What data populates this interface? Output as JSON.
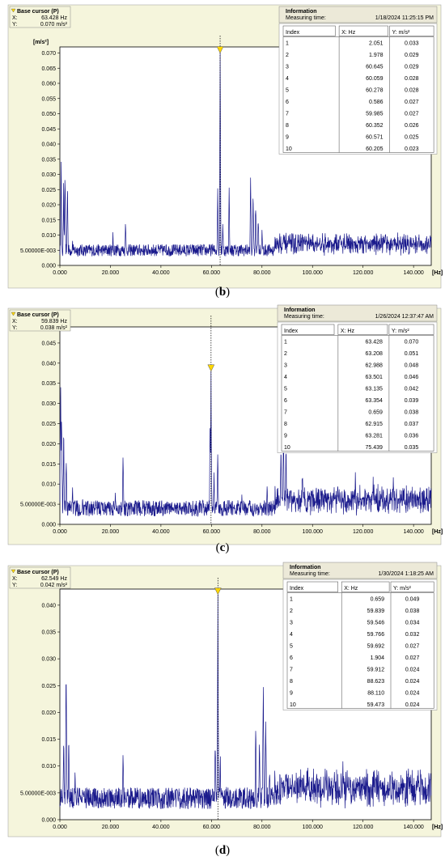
{
  "colors": {
    "frame_bg": "#f5f5dc",
    "plot_bg": "#ffffff",
    "trace": "#1a1a8c",
    "marker": "#ffd700",
    "info_header": "#ece9d8"
  },
  "chart_data": [
    {
      "type": "line",
      "caption": "b",
      "cursor": {
        "title": "Base cursor (P)",
        "x_label": "X:",
        "x_value": "63.428 Hz",
        "y_label": "Y:",
        "y_value": "0.070 m/s²"
      },
      "info": {
        "title": "Information",
        "measuring_label": "Measuring time:",
        "measuring_time": "1/18/2024 11:25:15 PM",
        "columns": [
          "Index",
          "X: Hz",
          "Y: m/s²"
        ],
        "rows": [
          [
            "1",
            "2.051",
            "0.033"
          ],
          [
            "2",
            "1.978",
            "0.029"
          ],
          [
            "3",
            "60.645",
            "0.029"
          ],
          [
            "4",
            "60.059",
            "0.028"
          ],
          [
            "5",
            "60.278",
            "0.028"
          ],
          [
            "6",
            "0.586",
            "0.027"
          ],
          [
            "7",
            "59.985",
            "0.027"
          ],
          [
            "8",
            "60.352",
            "0.026"
          ],
          [
            "9",
            "60.571",
            "0.025"
          ],
          [
            "10",
            "60.205",
            "0.023"
          ]
        ]
      },
      "ylabel": "[m/s²]",
      "xlabel": "[Hz]",
      "xlim": [
        0,
        147000
      ],
      "ylim": [
        0,
        0.072
      ],
      "xticks": [
        "0.000",
        "20.000",
        "40.000",
        "60.000",
        "80.000",
        "100.000",
        "120.000",
        "140.000"
      ],
      "yticks": [
        "0.000",
        "5.00000E-003",
        "0.010",
        "0.015",
        "0.020",
        "0.025",
        "0.030",
        "0.035",
        "0.040",
        "0.045",
        "0.050",
        "0.055",
        "0.060",
        "0.065",
        "0.070"
      ],
      "cursor_x": 63428,
      "cursor_y": 0.07,
      "noise_floor": 0.003,
      "noise_amplitude": 0.004,
      "peaks": [
        [
          500,
          0.037
        ],
        [
          1500,
          0.028
        ],
        [
          2050,
          0.033
        ],
        [
          3000,
          0.029
        ],
        [
          5000,
          0.008
        ],
        [
          21000,
          0.01
        ],
        [
          26000,
          0.017
        ],
        [
          42000,
          0.007
        ],
        [
          60500,
          0.006
        ],
        [
          62500,
          0.03
        ],
        [
          63428,
          0.07
        ],
        [
          64500,
          0.015
        ],
        [
          67000,
          0.026
        ],
        [
          75500,
          0.034
        ],
        [
          76500,
          0.03
        ],
        [
          77500,
          0.024
        ],
        [
          78500,
          0.018
        ],
        [
          80000,
          0.012
        ],
        [
          87000,
          0.01
        ],
        [
          96000,
          0.011
        ],
        [
          100000,
          0.009
        ],
        [
          105000,
          0.01
        ],
        [
          111000,
          0.009
        ],
        [
          121000,
          0.008
        ],
        [
          132000,
          0.009
        ],
        [
          140000,
          0.009
        ]
      ]
    },
    {
      "type": "line",
      "caption": "c",
      "cursor": {
        "title": "Base cursor (P)",
        "x_label": "X:",
        "x_value": "59.839 Hz",
        "y_label": "Y:",
        "y_value": "0.038 m/s²"
      },
      "info": {
        "title": "Information",
        "measuring_label": "Measuring time:",
        "measuring_time": "1/26/2024 12:37:47 AM",
        "columns": [
          "Index",
          "X: Hz",
          "Y: m/s²"
        ],
        "rows": [
          [
            "1",
            "63.428",
            "0.070"
          ],
          [
            "2",
            "63.208",
            "0.051"
          ],
          [
            "3",
            "62.988",
            "0.048"
          ],
          [
            "4",
            "63.501",
            "0.046"
          ],
          [
            "5",
            "63.135",
            "0.042"
          ],
          [
            "6",
            "63.354",
            "0.039"
          ],
          [
            "7",
            "0.659",
            "0.038"
          ],
          [
            "8",
            "62.915",
            "0.037"
          ],
          [
            "9",
            "63.281",
            "0.036"
          ],
          [
            "10",
            "75.439",
            "0.035"
          ]
        ]
      },
      "ylabel": "[m/s²]",
      "xlabel": "[Hz]",
      "xlim": [
        0,
        147000
      ],
      "ylim": [
        0,
        0.049
      ],
      "xticks": [
        "0.000",
        "20.000",
        "40.000",
        "60.000",
        "80.000",
        "100.000",
        "120.000",
        "140.000"
      ],
      "yticks": [
        "0.000",
        "5.00000E-003",
        "0.010",
        "0.015",
        "0.020",
        "0.025",
        "0.030",
        "0.035",
        "0.040",
        "0.045"
      ],
      "cursor_x": 59839,
      "cursor_y": 0.038,
      "noise_floor": 0.002,
      "noise_amplitude": 0.004,
      "peaks": [
        [
          300,
          0.048
        ],
        [
          700,
          0.032
        ],
        [
          1500,
          0.026
        ],
        [
          2500,
          0.018
        ],
        [
          5000,
          0.01
        ],
        [
          9000,
          0.007
        ],
        [
          22000,
          0.008
        ],
        [
          25000,
          0.019
        ],
        [
          38000,
          0.005
        ],
        [
          59500,
          0.03
        ],
        [
          59839,
          0.038
        ],
        [
          61000,
          0.012
        ],
        [
          62500,
          0.02
        ],
        [
          72000,
          0.007
        ],
        [
          82000,
          0.01
        ],
        [
          87500,
          0.022
        ],
        [
          88500,
          0.024
        ],
        [
          89500,
          0.018
        ],
        [
          96000,
          0.015
        ],
        [
          110000,
          0.011
        ],
        [
          117000,
          0.012
        ],
        [
          124000,
          0.01
        ],
        [
          132000,
          0.011
        ],
        [
          139000,
          0.008
        ]
      ]
    },
    {
      "type": "line",
      "caption": "d",
      "cursor": {
        "title": "Base cursor (P)",
        "x_label": "X:",
        "x_value": "62.549 Hz",
        "y_label": "Y:",
        "y_value": "0.042 m/s²"
      },
      "info": {
        "title": "Information",
        "measuring_label": "Measuring time:",
        "measuring_time": "1/30/2024 1:18:25 AM",
        "columns": [
          "Index",
          "X: Hz",
          "Y: m/s²"
        ],
        "rows": [
          [
            "1",
            "0.659",
            "0.049"
          ],
          [
            "2",
            "59.839",
            "0.038"
          ],
          [
            "3",
            "59.546",
            "0.034"
          ],
          [
            "4",
            "59.766",
            "0.032"
          ],
          [
            "5",
            "59.692",
            "0.027"
          ],
          [
            "6",
            "1.904",
            "0.027"
          ],
          [
            "7",
            "59.912",
            "0.024"
          ],
          [
            "8",
            "88.623",
            "0.024"
          ],
          [
            "9",
            "88.110",
            "0.024"
          ],
          [
            "10",
            "59.473",
            "0.024"
          ]
        ]
      },
      "ylabel": "[m/s²]",
      "xlabel": "[Hz]",
      "xlim": [
        0,
        147000
      ],
      "ylim": [
        0,
        0.043
      ],
      "xticks": [
        "0.000",
        "20.000",
        "40.000",
        "60.000",
        "80.000",
        "100.000",
        "120.000",
        "140.000"
      ],
      "yticks": [
        "0.000",
        "5.00000E-003",
        "0.010",
        "0.015",
        "0.020",
        "0.025",
        "0.030",
        "0.035",
        "0.040"
      ],
      "cursor_x": 62549,
      "cursor_y": 0.042,
      "noise_floor": 0.002,
      "noise_amplitude": 0.004,
      "peaks": [
        [
          1500,
          0.018
        ],
        [
          2500,
          0.034
        ],
        [
          3500,
          0.016
        ],
        [
          6000,
          0.009
        ],
        [
          9000,
          0.006
        ],
        [
          25000,
          0.012
        ],
        [
          40000,
          0.004
        ],
        [
          61500,
          0.018
        ],
        [
          62549,
          0.042
        ],
        [
          63500,
          0.012
        ],
        [
          66000,
          0.006
        ],
        [
          77500,
          0.02
        ],
        [
          79000,
          0.016
        ],
        [
          80500,
          0.028
        ],
        [
          81500,
          0.022
        ],
        [
          83000,
          0.01
        ],
        [
          92000,
          0.008
        ],
        [
          105000,
          0.009
        ],
        [
          112000,
          0.01
        ],
        [
          125000,
          0.008
        ],
        [
          138000,
          0.009
        ]
      ]
    }
  ]
}
